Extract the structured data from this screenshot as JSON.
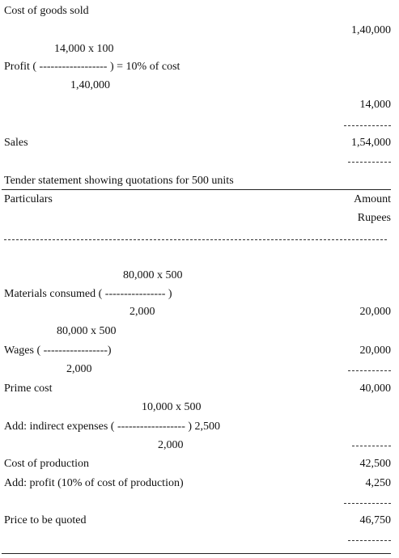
{
  "profit_calc": {
    "cost_label": "Cost of goods sold",
    "cost_value": "1,40,000",
    "numerator": "14,000 x 100",
    "profit_line": "Profit ( ------------------ ) = 10% of cost",
    "denominator": "1,40,000",
    "profit_value": "14,000",
    "sales_label": "Sales",
    "sales_value": "1,54,000"
  },
  "tender": {
    "title": "Tender statement showing quotations for 500 units",
    "header": {
      "particulars": "Particulars",
      "amount": "Amount",
      "unit": "Rupees"
    },
    "materials": {
      "numerator": "80,000 x 500",
      "label": "Materials consumed ( ---------------- )",
      "denominator": "2,000",
      "amount": "20,000"
    },
    "wages": {
      "numerator": "80,000 x 500",
      "label": "Wages ( -----------------)",
      "denominator": "2,000",
      "amount": "20,000"
    },
    "prime_cost": {
      "label": "Prime cost",
      "amount": "40,000"
    },
    "indirect": {
      "numerator": "10,000 x 500",
      "label": "Add: indirect expenses ( ------------------ ) 2,500",
      "denominator": "2,000"
    },
    "cost_of_production": {
      "label": "Cost of production",
      "amount": "42,500"
    },
    "profit": {
      "label": "Add: profit (10% of cost of production)",
      "amount": "4,250"
    },
    "price": {
      "label": "Price to be quoted",
      "amount": "46,750"
    }
  }
}
